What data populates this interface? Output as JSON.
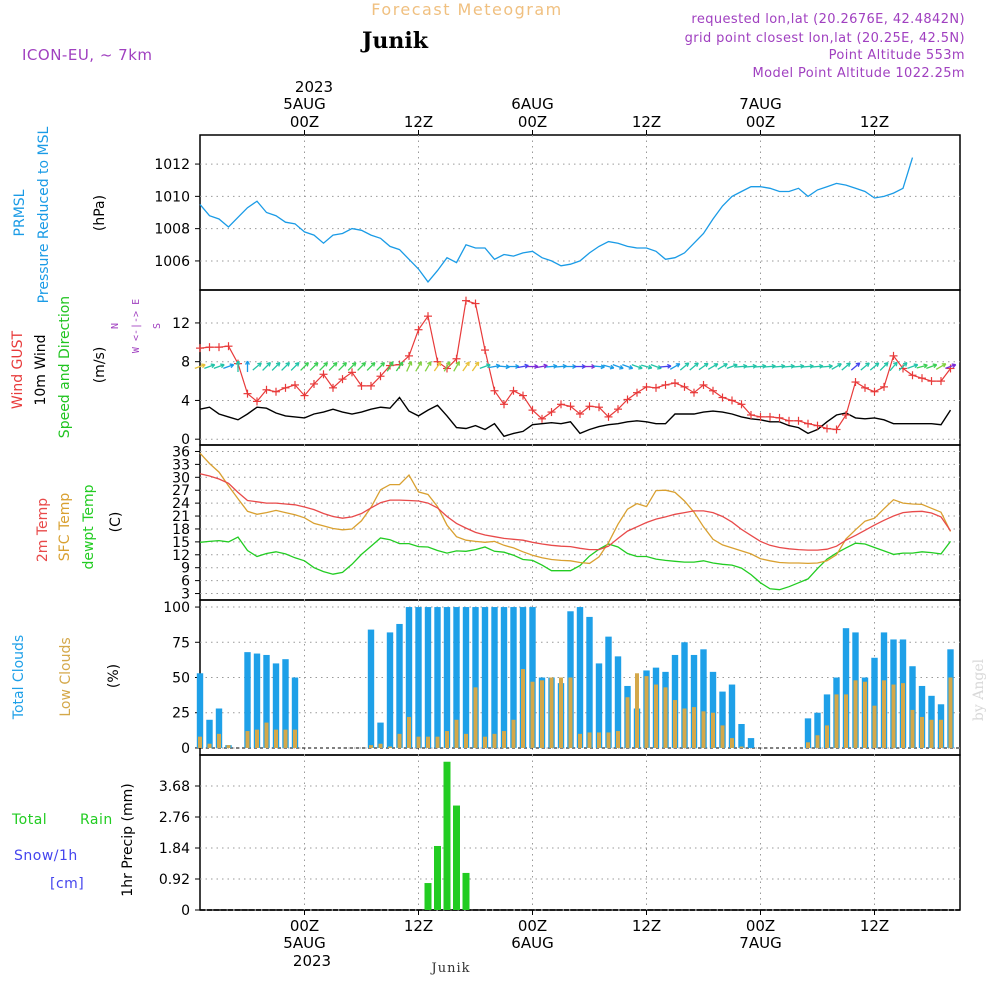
{
  "header": {
    "title": "Forecast Meteogram",
    "location": "Junik",
    "model": "ICON-EU, ~ 7km",
    "requested": "requested lon,lat (20.2676E, 42.4842N)",
    "grid_point": "grid point closest lon,lat (20.25E, 42.5N)",
    "point_altitude": "Point Altitude 553m",
    "model_altitude": "Model Point Altitude 1022.25m"
  },
  "footer": {
    "location": "Junik",
    "watermark": "by Angel"
  },
  "colors": {
    "pressure": "#1a9be6",
    "gust": "#e83a3a",
    "wind": "#000000",
    "wind_dir": "#1fc41f",
    "temp": "#e84a4a",
    "sfc_temp": "#d9a030",
    "dewpt": "#22cc22",
    "total_clouds": "#1ea0e8",
    "low_clouds": "#d4a84a",
    "rain": "#22cc22",
    "snow": "#4444ee",
    "meta": "#a040c0",
    "title": "#f0c080"
  },
  "time_axis": {
    "year": "2023",
    "ticks": [
      {
        "h": 0,
        "label": "00Z",
        "date": "5AUG"
      },
      {
        "h": 12,
        "label": "12Z",
        "date": ""
      },
      {
        "h": 24,
        "label": "00Z",
        "date": "6AUG"
      },
      {
        "h": 36,
        "label": "12Z",
        "date": ""
      },
      {
        "h": 48,
        "label": "00Z",
        "date": "7AUG"
      },
      {
        "h": 60,
        "label": "12Z",
        "date": ""
      }
    ]
  },
  "panel_labels": {
    "pressure": [
      "PRMSL",
      "Pressure Reduced to MSL",
      "(hPa)"
    ],
    "wind": [
      "Wind GUST",
      "10m Wind",
      "Speed and Direction",
      "(m/s)"
    ],
    "compass": [
      "N",
      "W <-|-> E",
      "S"
    ],
    "temp": [
      "2m Temp",
      "SFC Temp",
      "dewpt Temp",
      "(C)"
    ],
    "clouds": [
      "Total Clouds",
      "Low Clouds",
      "(%)"
    ],
    "precip": [
      "Total",
      "Rain",
      "Snow/1h",
      "[cm]",
      "1hr Precip (mm)"
    ]
  },
  "chart_data": [
    {
      "type": "line",
      "panel": "pressure",
      "title": "PRMSL Pressure Reduced to MSL",
      "ylabel": "(hPa)",
      "ylim": [
        1004.2,
        1013.8
      ],
      "yticks": [
        1006,
        1008,
        1010,
        1012
      ],
      "x_start": -11,
      "x_step": 1,
      "series": [
        {
          "name": "PRMSL",
          "values": [
            1009.5,
            1008.8,
            1008.6,
            1008.1,
            1008.7,
            1009.3,
            1009.7,
            1009.0,
            1008.8,
            1008.4,
            1008.3,
            1007.8,
            1007.6,
            1007.1,
            1007.6,
            1007.7,
            1008.0,
            1007.9,
            1007.6,
            1007.4,
            1006.9,
            1006.7,
            1006.1,
            1005.5,
            1004.7,
            1005.4,
            1006.2,
            1005.9,
            1007.0,
            1006.8,
            1006.8,
            1006.1,
            1006.4,
            1006.3,
            1006.5,
            1006.6,
            1006.2,
            1006.0,
            1005.7,
            1005.8,
            1006.0,
            1006.5,
            1006.9,
            1007.2,
            1007.1,
            1006.9,
            1006.8,
            1006.8,
            1006.6,
            1006.1,
            1006.2,
            1006.5,
            1007.1,
            1007.7,
            1008.6,
            1009.4,
            1010.0,
            1010.3,
            1010.6,
            1010.6,
            1010.5,
            1010.3,
            1010.3,
            1010.5,
            1010.0,
            1010.4,
            1010.6,
            1010.8,
            1010.7,
            1010.5,
            1010.3,
            1009.9,
            1010.0,
            1010.2,
            1010.5,
            1012.4
          ]
        }
      ]
    },
    {
      "type": "line",
      "panel": "wind",
      "title": "Wind GUST / 10m Wind Speed and Direction",
      "ylabel": "(m/s)",
      "ylim": [
        -0.6,
        15.4
      ],
      "yticks": [
        0,
        4,
        8,
        12
      ],
      "x_start": -11,
      "x_step": 1,
      "series": [
        {
          "name": "Wind GUST",
          "values": [
            9.4,
            9.5,
            9.5,
            9.6,
            7.8,
            4.7,
            3.9,
            5.1,
            4.9,
            5.3,
            5.6,
            4.5,
            5.7,
            6.7,
            5.3,
            6.2,
            6.9,
            5.5,
            5.5,
            6.5,
            7.6,
            7.7,
            8.6,
            11.3,
            12.7,
            8.0,
            7.3,
            8.3,
            14.3,
            14.0,
            9.2,
            5.0,
            3.6,
            5.0,
            4.5,
            3.0,
            2.1,
            2.8,
            3.6,
            3.4,
            2.6,
            3.4,
            3.3,
            2.3,
            3.1,
            4.1,
            4.8,
            5.4,
            5.3,
            5.6,
            5.8,
            5.4,
            4.8,
            5.6,
            5.0,
            4.3,
            4.0,
            3.6,
            2.5,
            2.3,
            2.3,
            2.2,
            1.9,
            1.9,
            1.6,
            1.4,
            1.1,
            1.0,
            2.5,
            5.9,
            5.3,
            4.9,
            5.4,
            8.6,
            7.3,
            6.6,
            6.3,
            6.0,
            6.0,
            7.3
          ]
        },
        {
          "name": "10m Wind",
          "values": [
            3.1,
            3.3,
            2.6,
            2.3,
            2.0,
            2.6,
            3.3,
            3.2,
            2.7,
            2.4,
            2.3,
            2.2,
            2.6,
            2.8,
            3.1,
            2.8,
            2.6,
            2.8,
            3.1,
            3.3,
            3.2,
            4.3,
            2.9,
            2.4,
            3.0,
            3.5,
            2.4,
            1.2,
            1.1,
            1.4,
            1.0,
            1.6,
            0.3,
            0.6,
            0.8,
            1.5,
            1.6,
            1.7,
            1.6,
            1.8,
            0.6,
            1.0,
            1.3,
            1.5,
            1.6,
            1.8,
            1.9,
            1.8,
            1.6,
            1.6,
            2.6,
            2.6,
            2.6,
            2.8,
            2.9,
            2.8,
            2.6,
            2.3,
            2.1,
            2.0,
            1.8,
            1.8,
            1.4,
            1.2,
            0.6,
            1.0,
            1.8,
            2.5,
            2.7,
            2.2,
            2.1,
            2.2,
            2.0,
            1.6,
            1.6,
            1.6,
            1.6,
            1.6,
            1.5,
            3.0
          ]
        }
      ],
      "direction_arrows": {
        "x_start": -11,
        "x_step": 1,
        "y_level": 7.5,
        "deg": [
          250,
          250,
          250,
          250,
          180,
          180,
          230,
          225,
          225,
          225,
          225,
          225,
          225,
          225,
          225,
          225,
          225,
          225,
          225,
          225,
          210,
          215,
          205,
          210,
          210,
          215,
          210,
          210,
          215,
          215,
          250,
          260,
          275,
          270,
          260,
          270,
          260,
          265,
          265,
          270,
          270,
          270,
          275,
          285,
          290,
          290,
          290,
          285,
          290,
          265,
          240,
          230,
          230,
          235,
          240,
          240,
          250,
          265,
          265,
          265,
          265,
          265,
          265,
          265,
          265,
          265,
          265,
          240,
          230,
          230,
          230,
          230,
          225,
          220,
          225,
          250,
          255,
          250,
          240,
          250
        ],
        "colors": [
          "#e8c23a",
          "#22c4a8",
          "#22c4a8",
          "#1a9be6",
          "#22c4a8",
          "#1a9be6",
          "#22c4a8",
          "#22c4a8",
          "#22c4a8",
          "#22c4a8",
          "#22c4a8",
          "#3ccf55",
          "#3ccf55",
          "#3ccf55",
          "#3ccf55",
          "#3ccf55",
          "#3ccf55",
          "#3ccf55",
          "#3ccf55",
          "#3ccf55",
          "#3ccf55",
          "#3ccf55",
          "#80d040",
          "#80d040",
          "#80d040",
          "#e8c23a",
          "#80d040",
          "#80d040",
          "#e8c23a",
          "#e8c23a",
          "#22c4a8",
          "#1a9be6",
          "#1a9be6",
          "#1a9be6",
          "#4444ee",
          "#7a2bd8",
          "#7a2bd8",
          "#1a9be6",
          "#1a9be6",
          "#1a9be6",
          "#4444ee",
          "#7a2bd8",
          "#1a9be6",
          "#1a9be6",
          "#1a9be6",
          "#1a9be6",
          "#22c4a8",
          "#22c4a8",
          "#22c4a8",
          "#4444ee",
          "#1a9be6",
          "#22c4a8",
          "#22c4a8",
          "#22c4a8",
          "#22c4a8",
          "#22c4a8",
          "#22c4a8",
          "#22c4a8",
          "#22c4a8",
          "#22c4a8",
          "#22c4a8",
          "#22c4a8",
          "#22c4a8",
          "#22c4a8",
          "#22c4a8",
          "#22c4a8",
          "#22c4a8",
          "#22c4a8",
          "#22c4a8",
          "#4444ee",
          "#22c4a8",
          "#22c4a8",
          "#22c4a8",
          "#22c4a8",
          "#22c4a8",
          "#22c4a8",
          "#3ccf55",
          "#3ccf55",
          "#80d040",
          "#7a2bd8"
        ]
      }
    },
    {
      "type": "line",
      "panel": "temperature",
      "title": "2m Temp / SFC Temp / dewpt Temp",
      "ylabel": "(C)",
      "ylim": [
        1.5,
        37.5
      ],
      "yticks": [
        3,
        6,
        9,
        12,
        15,
        18,
        21,
        24,
        27,
        30,
        33,
        36
      ],
      "x_start": -11,
      "x_step": 1,
      "series": [
        {
          "name": "2m Temp",
          "values": [
            30.8,
            30.3,
            29.6,
            28.6,
            26.5,
            24.6,
            24.3,
            24.0,
            24.0,
            23.8,
            23.6,
            23.1,
            22.5,
            21.6,
            20.9,
            20.5,
            20.8,
            21.6,
            22.9,
            24.1,
            24.7,
            24.7,
            24.6,
            24.5,
            24.0,
            22.9,
            20.9,
            19.3,
            18.2,
            17.2,
            16.6,
            16.2,
            15.8,
            15.6,
            15.4,
            14.9,
            14.5,
            14.2,
            14.0,
            13.9,
            13.5,
            13.2,
            13.2,
            14.0,
            15.8,
            17.5,
            18.5,
            19.5,
            20.3,
            20.8,
            21.4,
            21.8,
            22.2,
            22.2,
            21.8,
            20.9,
            19.6,
            17.9,
            16.5,
            15.1,
            14.2,
            13.7,
            13.4,
            13.2,
            13.1,
            13.1,
            13.3,
            14.0,
            15.4,
            16.5,
            17.7,
            18.9,
            20.0,
            21.0,
            21.8,
            22.0,
            22.1,
            21.7,
            20.8,
            17.6
          ]
        },
        {
          "name": "SFC Temp",
          "values": [
            35.6,
            33.2,
            31.2,
            28.0,
            25.0,
            22.1,
            21.4,
            21.8,
            22.3,
            21.8,
            21.3,
            20.6,
            19.3,
            18.7,
            18.1,
            17.8,
            18.0,
            19.9,
            23.0,
            27.1,
            28.3,
            28.3,
            30.5,
            26.6,
            26.0,
            23.2,
            18.9,
            16.2,
            15.4,
            15.1,
            14.9,
            15.1,
            14.2,
            13.6,
            12.7,
            11.9,
            11.3,
            10.9,
            10.7,
            10.6,
            10.2,
            10.0,
            11.5,
            14.8,
            19.1,
            22.6,
            23.9,
            23.2,
            26.9,
            27.0,
            26.5,
            24.5,
            21.9,
            18.5,
            15.6,
            14.3,
            13.6,
            12.9,
            12.2,
            11.1,
            10.6,
            10.2,
            10.1,
            10.1,
            10.0,
            10.1,
            10.6,
            12.0,
            15.7,
            17.8,
            19.8,
            20.5,
            22.7,
            24.8,
            24.0,
            23.8,
            23.7,
            22.8,
            21.9,
            17.4
          ]
        },
        {
          "name": "dewpt Temp",
          "values": [
            14.9,
            15.1,
            15.3,
            15.0,
            16.1,
            13.0,
            11.6,
            12.3,
            12.7,
            12.2,
            11.3,
            10.6,
            9.0,
            8.1,
            7.5,
            7.9,
            9.8,
            12.1,
            14.0,
            15.9,
            15.5,
            14.6,
            14.6,
            13.9,
            13.8,
            13.0,
            12.4,
            12.9,
            12.8,
            13.2,
            13.8,
            12.8,
            12.6,
            11.9,
            10.9,
            10.7,
            9.6,
            8.3,
            8.3,
            8.3,
            9.5,
            11.7,
            13.3,
            14.5,
            13.8,
            12.3,
            11.6,
            11.6,
            11.0,
            10.7,
            10.5,
            10.3,
            10.3,
            10.6,
            10.1,
            9.8,
            9.6,
            8.9,
            7.4,
            5.5,
            4.1,
            3.9,
            4.6,
            5.5,
            6.4,
            8.8,
            11.0,
            12.4,
            13.6,
            14.7,
            14.5,
            13.7,
            12.9,
            12.1,
            12.4,
            12.4,
            12.7,
            12.5,
            12.2,
            15.1
          ]
        }
      ]
    },
    {
      "type": "bar",
      "panel": "clouds",
      "title": "Total Clouds / Low Clouds",
      "ylabel": "(%)",
      "ylim": [
        -5,
        105
      ],
      "yticks": [
        0,
        25,
        50,
        75,
        100
      ],
      "x_start": -11,
      "x_step": 1,
      "series": [
        {
          "name": "Total Clouds",
          "values": [
            53,
            20,
            28,
            2,
            0,
            68,
            67,
            66,
            60,
            63,
            50,
            0,
            0,
            0,
            0,
            0,
            0,
            0,
            84,
            18,
            82,
            88,
            100,
            100,
            100,
            100,
            100,
            100,
            100,
            100,
            100,
            100,
            100,
            100,
            100,
            100,
            50,
            50,
            46,
            97,
            100,
            93,
            60,
            79,
            65,
            44,
            28,
            55,
            57,
            54,
            66,
            75,
            66,
            70,
            54,
            40,
            45,
            17,
            7,
            0,
            0,
            0,
            0,
            0,
            21,
            25,
            38,
            50,
            85,
            82,
            50,
            64,
            82,
            77,
            77,
            58,
            44,
            37,
            31,
            70
          ]
        },
        {
          "name": "Low Clouds",
          "values": [
            8,
            3,
            10,
            2,
            0,
            12,
            13,
            18,
            13,
            13,
            13,
            0,
            0,
            0,
            0,
            0,
            0,
            0,
            2,
            3,
            1,
            10,
            22,
            8,
            8,
            8,
            12,
            20,
            10,
            43,
            8,
            10,
            12,
            20,
            56,
            47,
            48,
            50,
            50,
            50,
            10,
            11,
            11,
            11,
            12,
            36,
            53,
            51,
            45,
            43,
            34,
            28,
            29,
            26,
            25,
            16,
            7,
            1,
            0,
            0,
            0,
            0,
            0,
            0,
            4,
            9,
            16,
            38,
            38,
            48,
            47,
            30,
            48,
            45,
            46,
            27,
            22,
            20,
            20,
            50
          ]
        }
      ]
    },
    {
      "type": "bar",
      "panel": "precip",
      "title": "1hr Precip (mm) - Total Rain / Snow",
      "ylabel": "1hr Precip (mm)",
      "ylim": [
        0,
        4.6
      ],
      "yticks": [
        0,
        0.92,
        1.84,
        2.76,
        3.68
      ],
      "x_start": -11,
      "x_step": 1,
      "series": [
        {
          "name": "Total Rain",
          "values": [
            0,
            0,
            0,
            0,
            0,
            0,
            0,
            0,
            0,
            0,
            0,
            0,
            0,
            0,
            0,
            0,
            0,
            0,
            0,
            0,
            0,
            0,
            0,
            0,
            0.8,
            1.9,
            4.4,
            3.1,
            1.1,
            0,
            0,
            0,
            0,
            0,
            0,
            0,
            0,
            0,
            0,
            0,
            0,
            0,
            0,
            0,
            0,
            0,
            0,
            0,
            0,
            0,
            0,
            0,
            0,
            0,
            0,
            0,
            0,
            0,
            0,
            0,
            0,
            0,
            0,
            0,
            0,
            0,
            0,
            0,
            0,
            0,
            0,
            0,
            0,
            0,
            0,
            0,
            0,
            0,
            0,
            0
          ]
        },
        {
          "name": "Snow/1h",
          "values": []
        }
      ]
    }
  ]
}
